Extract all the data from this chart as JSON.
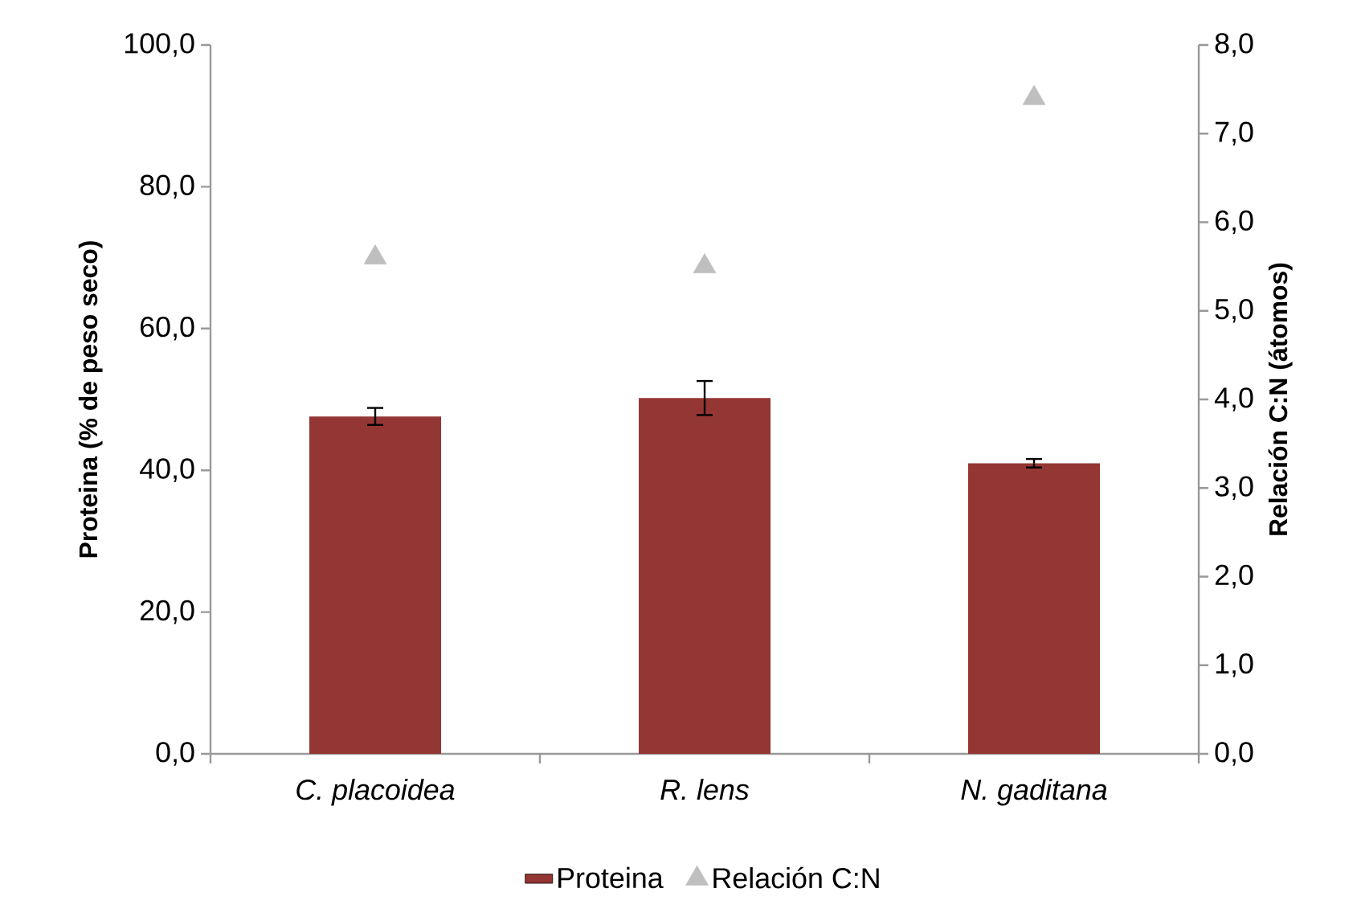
{
  "chart_data": {
    "type": "bar",
    "categories": [
      "C. placoidea",
      "R. lens",
      "N. gaditana"
    ],
    "series": [
      {
        "name": "Proteina",
        "color": "#943634",
        "values": [
          47.6,
          50.2,
          41.0
        ],
        "errors": [
          1.2,
          2.4,
          0.6
        ]
      },
      {
        "name": "Relación C:N",
        "type": "scatter",
        "axis": "y2",
        "color": "#bfbfbf",
        "values": [
          5.6,
          5.5,
          7.4
        ]
      }
    ],
    "ylabel": "Proteina (% de peso seco)",
    "y2label": "Relación C:N (átomos)",
    "ylim": [
      0,
      100
    ],
    "yticks": [
      {
        "value": 0,
        "label": "0,0"
      },
      {
        "value": 20,
        "label": "20,0"
      },
      {
        "value": 40,
        "label": "40,0"
      },
      {
        "value": 60,
        "label": "60,0"
      },
      {
        "value": 80,
        "label": "80,0"
      },
      {
        "value": 100,
        "label": "100,0"
      }
    ],
    "y2lim": [
      0,
      8
    ],
    "y2ticks": [
      {
        "value": 0,
        "label": "0,0"
      },
      {
        "value": 1,
        "label": "1,0"
      },
      {
        "value": 2,
        "label": "2,0"
      },
      {
        "value": 3,
        "label": "3,0"
      },
      {
        "value": 4,
        "label": "4,0"
      },
      {
        "value": 5,
        "label": "5,0"
      },
      {
        "value": 6,
        "label": "6,0"
      },
      {
        "value": 7,
        "label": "7,0"
      },
      {
        "value": 8,
        "label": "8,0"
      }
    ],
    "legend": "bottom",
    "marker": "triangle",
    "grid": false
  }
}
